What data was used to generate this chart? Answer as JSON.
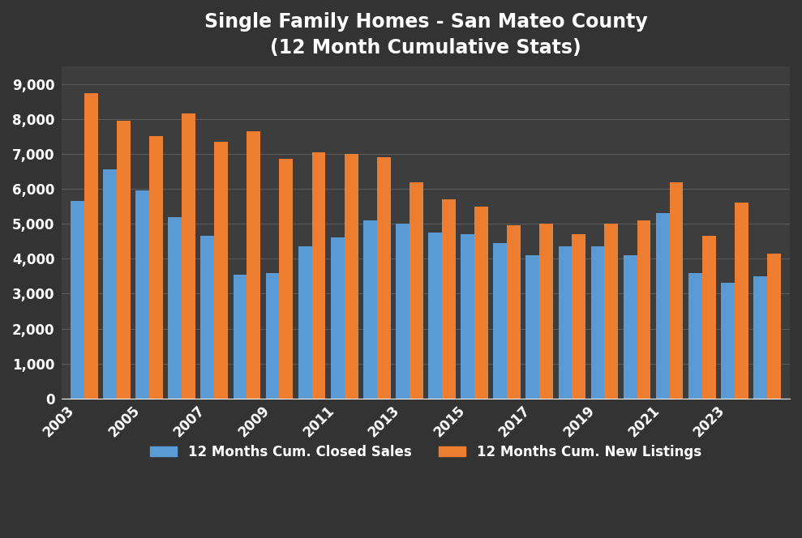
{
  "title_line1": "Single Family Homes - San Mateo County",
  "title_line2": "(12 Month Cumulative Stats)",
  "years": [
    2003,
    2004,
    2005,
    2006,
    2007,
    2008,
    2009,
    2010,
    2011,
    2012,
    2013,
    2014,
    2015,
    2016,
    2017,
    2018,
    2019,
    2020,
    2021,
    2022,
    2023,
    2024
  ],
  "closed_sales": [
    5650,
    6550,
    5950,
    5200,
    4650,
    3550,
    3600,
    4350,
    4600,
    5100,
    5000,
    4750,
    4700,
    4450,
    4100,
    4350,
    4350,
    4100,
    5300,
    3600,
    3300,
    3500
  ],
  "new_listings": [
    8750,
    7950,
    7500,
    8150,
    7350,
    7650,
    6850,
    7050,
    7000,
    6900,
    6200,
    5700,
    5500,
    4950,
    5000,
    4700,
    5000,
    5100,
    6200,
    4650,
    5600,
    4150
  ],
  "bar_color_closed": "#5b9bd5",
  "bar_color_new": "#ed7d31",
  "background_color": "#333333",
  "axes_background_color": "#3d3d3d",
  "text_color": "#ffffff",
  "grid_color": "#5a5a5a",
  "ylim": [
    0,
    9500
  ],
  "yticks": [
    0,
    1000,
    2000,
    3000,
    4000,
    5000,
    6000,
    7000,
    8000,
    9000
  ],
  "legend_label_closed": "12 Months Cum. Closed Sales",
  "legend_label_new": "12 Months Cum. New Listings",
  "tick_years": [
    2003,
    2005,
    2007,
    2009,
    2011,
    2013,
    2015,
    2017,
    2019,
    2021,
    2023
  ]
}
